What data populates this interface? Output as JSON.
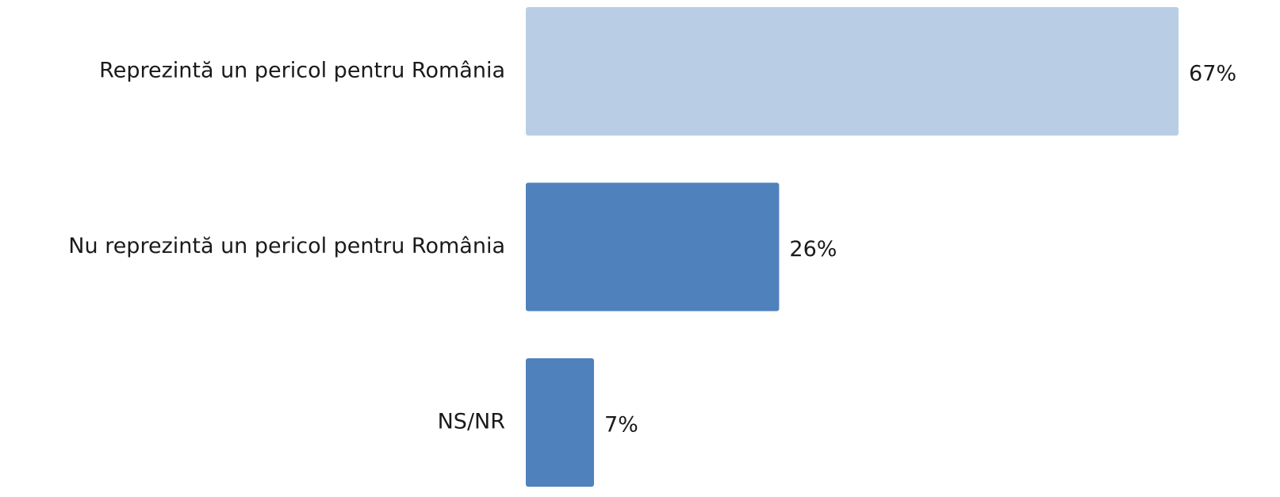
{
  "chart_data": {
    "type": "bar",
    "orientation": "horizontal",
    "categories": [
      "Reprezintă un pericol pentru România",
      "Nu reprezintă un pericol pentru România",
      "NS/NR"
    ],
    "values": [
      67,
      26,
      7
    ],
    "value_labels": [
      "67%",
      "26%",
      "7%"
    ],
    "colors": [
      "#b9cde5",
      "#4f81bd",
      "#4f81bd"
    ],
    "xlim": [
      0,
      70
    ]
  }
}
